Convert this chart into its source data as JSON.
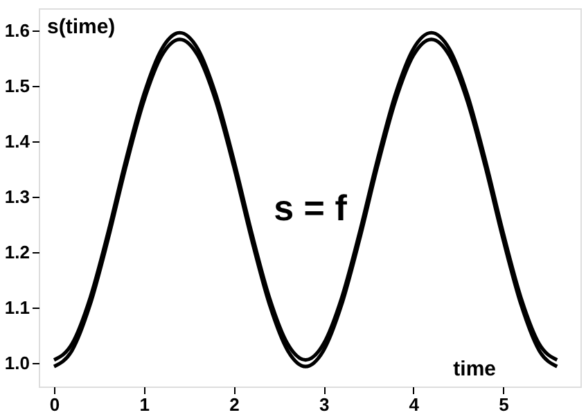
{
  "chart_data": {
    "type": "line",
    "xlabel": "time",
    "ylabel": "s(time)",
    "annotations": [
      "s = f"
    ],
    "x": [
      0,
      0.2,
      0.4,
      0.6,
      0.8,
      1.0,
      1.2,
      1.4,
      1.6,
      1.8,
      2.0,
      2.2,
      2.4,
      2.6,
      2.8,
      3.0,
      3.2,
      3.4,
      3.6,
      3.8,
      4.0,
      4.2,
      4.4,
      4.6,
      4.8,
      5.0,
      5.2,
      5.4,
      5.6
    ],
    "series": [
      {
        "color": "#000000",
        "values": [
          1.006,
          1.035,
          1.117,
          1.235,
          1.367,
          1.485,
          1.567,
          1.596,
          1.567,
          1.485,
          1.367,
          1.235,
          1.117,
          1.035,
          1.006,
          1.035,
          1.117,
          1.235,
          1.367,
          1.485,
          1.567,
          1.596,
          1.567,
          1.485,
          1.367,
          1.235,
          1.117,
          1.035,
          1.006
        ]
      },
      {
        "color": "#000000",
        "values": [
          0.994,
          1.023,
          1.105,
          1.223,
          1.355,
          1.473,
          1.555,
          1.584,
          1.555,
          1.473,
          1.355,
          1.223,
          1.105,
          1.023,
          0.994,
          1.023,
          1.105,
          1.223,
          1.355,
          1.473,
          1.555,
          1.584,
          1.555,
          1.473,
          1.355,
          1.223,
          1.105,
          1.023,
          0.994
        ]
      }
    ],
    "xlim": [
      -0.17,
      5.86
    ],
    "ylim": [
      0.958,
      1.64
    ],
    "xticks": [
      0,
      1,
      2,
      3,
      4,
      5
    ],
    "yticks": [
      {
        "value": 1.0,
        "label": "1.0"
      },
      {
        "value": 1.1,
        "label": "1.1"
      },
      {
        "value": 1.2,
        "label": "1.2"
      },
      {
        "value": 1.3,
        "label": "1.3"
      },
      {
        "value": 1.4,
        "label": "1.4"
      },
      {
        "value": 1.5,
        "label": "1.5"
      },
      {
        "value": 1.6,
        "label": "1.6"
      }
    ],
    "grid": false,
    "marker": "none",
    "line_style": "solid"
  }
}
